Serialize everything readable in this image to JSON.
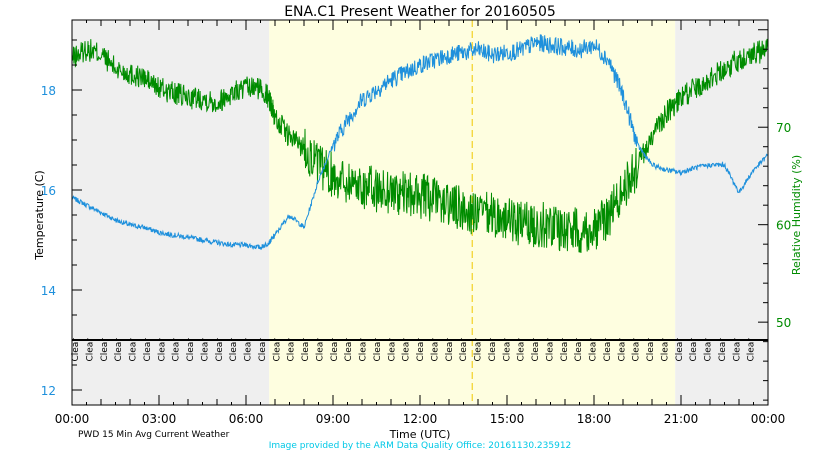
{
  "chart_data": {
    "type": "line",
    "title": "ENA.C1 Present Weather for 20160505",
    "xlabel": "Time (UTC)",
    "ylabel_left": "Temperature (C)",
    "ylabel_right": "Relative Humidity (%)",
    "x_ticks": [
      "00:00",
      "03:00",
      "06:00",
      "09:00",
      "12:00",
      "15:00",
      "18:00",
      "21:00",
      "00:00"
    ],
    "x_range_hours": [
      0,
      24
    ],
    "y_left_ticks": [
      12,
      14,
      16,
      18
    ],
    "ylim_left": [
      11.7,
      19.4
    ],
    "y_right_ticks": [
      50,
      60,
      70
    ],
    "ylim_right": [
      41.5,
      81.0
    ],
    "night_shading_hours": [
      [
        0,
        6.8
      ],
      [
        20.8,
        24
      ]
    ],
    "day_shading_hours": [
      6.8,
      20.8
    ],
    "solar_noon_marker_hour": 13.8,
    "weather_row_label": "PWD 15 Min Avg Current Weather",
    "weather_label_value": "Clear",
    "weather_label_count": 48,
    "weather_row_temp": 13.0,
    "colors": {
      "temperature": "#1e90dc",
      "humidity": "#008c00",
      "night": "#efefef",
      "day": "#fefee0",
      "noon_line": "#f0c800",
      "credit": "#00c8e6"
    },
    "series": [
      {
        "name": "Temperature (C)",
        "axis": "left",
        "x_hours": [
          0,
          0.5,
          1,
          1.5,
          2,
          2.5,
          3,
          3.5,
          4,
          4.5,
          5,
          5.5,
          6,
          6.5,
          6.8,
          7,
          7.5,
          8,
          8.5,
          9,
          9.5,
          10,
          10.5,
          11,
          11.5,
          12,
          12.5,
          13,
          13.5,
          14,
          14.5,
          15,
          15.5,
          16,
          16.5,
          17,
          17.5,
          18,
          18.5,
          19,
          19.5,
          20,
          20.5,
          21,
          21.5,
          22,
          22.5,
          23,
          23.5,
          24
        ],
        "values": [
          15.85,
          15.7,
          15.55,
          15.4,
          15.3,
          15.25,
          15.15,
          15.1,
          15.05,
          15.0,
          14.95,
          14.9,
          14.9,
          14.85,
          14.95,
          15.1,
          15.5,
          15.25,
          16.2,
          16.9,
          17.4,
          17.8,
          18.0,
          18.2,
          18.35,
          18.5,
          18.6,
          18.7,
          18.75,
          18.8,
          18.7,
          18.75,
          18.8,
          18.95,
          18.9,
          18.85,
          18.8,
          18.9,
          18.6,
          17.9,
          16.9,
          16.5,
          16.4,
          16.35,
          16.45,
          16.5,
          16.5,
          15.95,
          16.4,
          16.7
        ]
      },
      {
        "name": "Relative Humidity (%)",
        "axis": "right",
        "x_hours": [
          0,
          0.5,
          1,
          1.5,
          2,
          2.5,
          3,
          3.5,
          4,
          4.5,
          5,
          5.5,
          6,
          6.5,
          6.8,
          7,
          7.5,
          8,
          8.5,
          9,
          9.5,
          10,
          10.5,
          11,
          11.5,
          12,
          12.5,
          13,
          13.5,
          14,
          14.5,
          15,
          15.5,
          16,
          16.5,
          17,
          17.5,
          18,
          18.5,
          19,
          19.5,
          20,
          20.5,
          21,
          21.5,
          22,
          22.5,
          23,
          23.5,
          24
        ],
        "values": [
          77,
          78,
          77.5,
          76,
          75.5,
          75,
          74,
          73.5,
          73,
          73,
          72.5,
          73.5,
          74,
          74,
          73,
          71,
          69,
          68,
          66,
          65,
          64.5,
          64,
          63.5,
          63.5,
          63,
          63,
          62.5,
          62,
          61.5,
          61,
          61,
          60.5,
          60,
          60,
          60,
          59.5,
          59.5,
          59.5,
          61,
          63.5,
          66,
          69,
          71.5,
          73,
          74,
          75,
          76,
          77,
          77.5,
          78
        ]
      }
    ]
  },
  "credit": "Image provided by the ARM Data Quality Office: 20161130.235912"
}
